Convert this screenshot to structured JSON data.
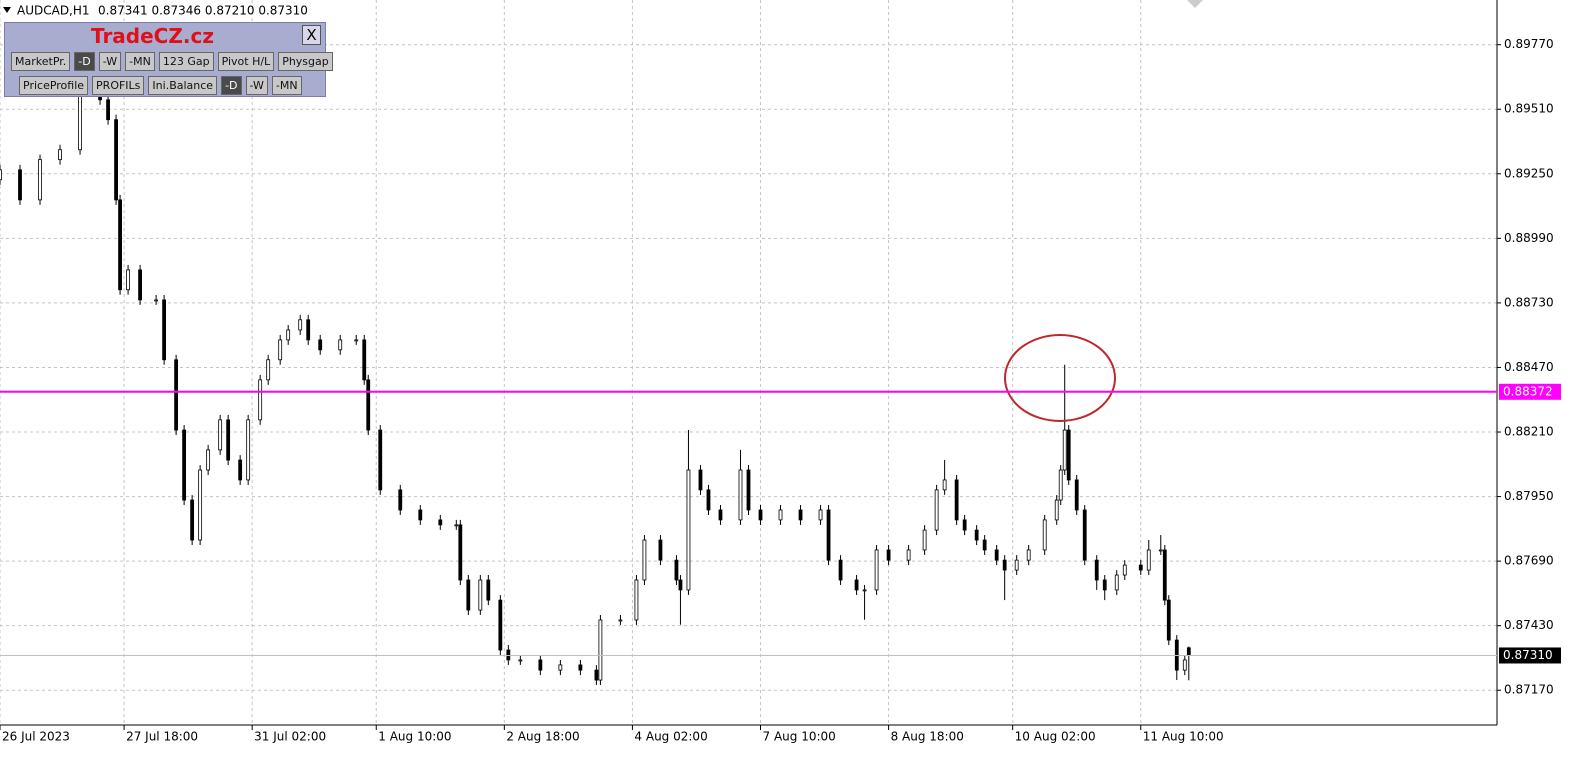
{
  "header": {
    "symbol": "AUDCAD,H1",
    "quote": "0.87341 0.87346 0.87210 0.87310"
  },
  "panel": {
    "title": "TradeCZ.cz",
    "close": "X",
    "buttons": [
      [
        "MarketPr.",
        "-D",
        "-W",
        "-MN",
        "123 Gap",
        "Pivot H/L",
        "Physgap"
      ],
      [
        "PriceProfile",
        "PROFILs",
        "Ini.Balance",
        "-D",
        "-W",
        "-MN"
      ]
    ]
  },
  "chart_data": {
    "type": "candlestick",
    "x": [
      0,
      5,
      10,
      15,
      20,
      25,
      27,
      29,
      30,
      32,
      35,
      39,
      41,
      44,
      46,
      48,
      50,
      52,
      55,
      57,
      60,
      62,
      65,
      67,
      70,
      72,
      75,
      77,
      80,
      85,
      89,
      91,
      92,
      95,
      100,
      105,
      110,
      114,
      115,
      117,
      120,
      122,
      125,
      127,
      130,
      135,
      140,
      145,
      149,
      150,
      155,
      159,
      161,
      165,
      169,
      170,
      172,
      175,
      177,
      180,
      185,
      187,
      190,
      195,
      200,
      205,
      207,
      210,
      214,
      216,
      219,
      222,
      227,
      231,
      234,
      236,
      239,
      241,
      244,
      246,
      249,
      251,
      254,
      257,
      261,
      264,
      265,
      266,
      267,
      269,
      271,
      274,
      276,
      279,
      281,
      285,
      287,
      290,
      291,
      292,
      294,
      296,
      297
    ],
    "open": [
      0.89226,
      0.89266,
      0.89145,
      0.89307,
      0.89347,
      0.89569,
      0.89548,
      0.89468,
      0.89145,
      0.88783,
      0.88863,
      0.88742,
      0.88742,
      0.88501,
      0.88218,
      0.87936,
      0.87775,
      0.88057,
      0.88138,
      0.88259,
      0.88097,
      0.88017,
      0.88259,
      0.8842,
      0.88501,
      0.88581,
      0.88621,
      0.88662,
      0.88581,
      0.88541,
      0.88581,
      0.88581,
      0.8842,
      0.88218,
      0.87977,
      0.87896,
      0.87856,
      0.87836,
      0.87836,
      0.87614,
      0.87493,
      0.87614,
      0.87533,
      0.87332,
      0.87292,
      0.87292,
      0.87251,
      0.87272,
      0.87251,
      0.87211,
      0.87453,
      0.87453,
      0.87614,
      0.87775,
      0.87694,
      0.87614,
      0.87574,
      0.88057,
      0.87977,
      0.87896,
      0.87856,
      0.88057,
      0.87896,
      0.87856,
      0.87896,
      0.87856,
      0.87896,
      0.87694,
      0.87614,
      0.87574,
      0.87574,
      0.87735,
      0.87694,
      0.87735,
      0.87815,
      0.87977,
      0.88017,
      0.87856,
      0.87815,
      0.87775,
      0.87735,
      0.87694,
      0.87654,
      0.87694,
      0.87735,
      0.87856,
      0.87936,
      0.88057,
      0.88218,
      0.88017,
      0.87896,
      0.87694,
      0.87614,
      0.87574,
      0.87634,
      0.87674,
      0.87654,
      0.87735,
      0.87735,
      0.87533,
      0.87372,
      0.87251,
      0.87341
    ],
    "high": [
      0.89286,
      0.89286,
      0.89327,
      0.89367,
      0.89589,
      0.89589,
      0.89568,
      0.89488,
      0.89165,
      0.88883,
      0.88883,
      0.88762,
      0.88762,
      0.88521,
      0.88238,
      0.87956,
      0.88077,
      0.88158,
      0.88279,
      0.88279,
      0.88117,
      0.88279,
      0.8844,
      0.88521,
      0.88601,
      0.88641,
      0.88682,
      0.88682,
      0.88601,
      0.88601,
      0.88601,
      0.88601,
      0.8844,
      0.88238,
      0.87997,
      0.87916,
      0.87876,
      0.87856,
      0.87856,
      0.87634,
      0.87634,
      0.87634,
      0.87553,
      0.87352,
      0.87312,
      0.87312,
      0.87292,
      0.87292,
      0.87271,
      0.87473,
      0.87473,
      0.87634,
      0.87795,
      0.87795,
      0.87714,
      0.87634,
      0.88218,
      0.88077,
      0.87997,
      0.87916,
      0.88138,
      0.88077,
      0.87916,
      0.87916,
      0.87916,
      0.87916,
      0.87916,
      0.87714,
      0.87634,
      0.87594,
      0.87755,
      0.87755,
      0.87755,
      0.87835,
      0.87997,
      0.88097,
      0.88037,
      0.87876,
      0.87835,
      0.87795,
      0.87755,
      0.87714,
      0.87714,
      0.87755,
      0.87876,
      0.87956,
      0.88077,
      0.88481,
      0.88238,
      0.88037,
      0.87916,
      0.87714,
      0.87634,
      0.87654,
      0.87694,
      0.87694,
      0.87775,
      0.87795,
      0.87755,
      0.87553,
      0.87392,
      0.87312,
      0.87346
    ],
    "low": [
      0.89206,
      0.89125,
      0.89125,
      0.89287,
      0.89327,
      0.89528,
      0.89448,
      0.89125,
      0.88763,
      0.88763,
      0.88722,
      0.88722,
      0.88481,
      0.88198,
      0.87916,
      0.87755,
      0.87755,
      0.88037,
      0.88118,
      0.88077,
      0.87997,
      0.87997,
      0.88239,
      0.884,
      0.88481,
      0.88561,
      0.88601,
      0.88561,
      0.88521,
      0.88521,
      0.88561,
      0.884,
      0.88198,
      0.87957,
      0.87876,
      0.87836,
      0.87816,
      0.87816,
      0.87594,
      0.87473,
      0.87473,
      0.87513,
      0.87312,
      0.87272,
      0.87272,
      0.87231,
      0.87231,
      0.87231,
      0.87191,
      0.87191,
      0.87433,
      0.87433,
      0.87594,
      0.87674,
      0.87594,
      0.87434,
      0.87554,
      0.87957,
      0.87876,
      0.87836,
      0.87836,
      0.87876,
      0.87836,
      0.87836,
      0.87836,
      0.87836,
      0.87674,
      0.87594,
      0.87554,
      0.87454,
      0.87554,
      0.87674,
      0.87674,
      0.87715,
      0.87795,
      0.87957,
      0.87836,
      0.87795,
      0.87755,
      0.87715,
      0.87674,
      0.87533,
      0.87634,
      0.87674,
      0.87715,
      0.87836,
      0.87916,
      0.88037,
      0.87997,
      0.87876,
      0.87674,
      0.87574,
      0.87533,
      0.87554,
      0.87614,
      0.87634,
      0.87634,
      0.87715,
      0.87513,
      0.87352,
      0.87211,
      0.87231,
      0.8721
    ],
    "close": [
      0.89266,
      0.89145,
      0.89307,
      0.89347,
      0.89569,
      0.89548,
      0.89468,
      0.89145,
      0.88783,
      0.88863,
      0.88742,
      0.88742,
      0.88501,
      0.88218,
      0.87936,
      0.87775,
      0.88057,
      0.88138,
      0.88259,
      0.88097,
      0.88017,
      0.88259,
      0.8842,
      0.88501,
      0.88581,
      0.88621,
      0.88662,
      0.88581,
      0.88541,
      0.88581,
      0.88581,
      0.8842,
      0.88218,
      0.87977,
      0.87896,
      0.87856,
      0.87836,
      0.87836,
      0.87614,
      0.87493,
      0.87614,
      0.87533,
      0.87332,
      0.87292,
      0.87292,
      0.87251,
      0.87272,
      0.87251,
      0.87211,
      0.87453,
      0.87453,
      0.87614,
      0.87775,
      0.87694,
      0.87614,
      0.87574,
      0.88057,
      0.87977,
      0.87896,
      0.87856,
      0.88057,
      0.87896,
      0.87856,
      0.87896,
      0.87856,
      0.87896,
      0.87694,
      0.87614,
      0.87574,
      0.87574,
      0.87735,
      0.87694,
      0.87735,
      0.87815,
      0.87977,
      0.88017,
      0.87856,
      0.87815,
      0.87775,
      0.87735,
      0.87694,
      0.87654,
      0.87694,
      0.87735,
      0.87856,
      0.87936,
      0.88057,
      0.88218,
      0.88017,
      0.87896,
      0.87694,
      0.87614,
      0.87574,
      0.87634,
      0.87674,
      0.87654,
      0.87735,
      0.87735,
      0.87533,
      0.87372,
      0.87251,
      0.87292,
      0.8731
    ],
    "up_color": "#ffffff",
    "down_color": "#000000",
    "line_color": "#000000",
    "xlim": [
      0,
      374
    ],
    "xticks": [
      {
        "value": 0,
        "label": "26 Jul 2023"
      },
      {
        "value": 31,
        "label": "27 Jul 18:00"
      },
      {
        "value": 63,
        "label": "31 Jul 02:00"
      },
      {
        "value": 94,
        "label": "1 Aug 10:00"
      },
      {
        "value": 126,
        "label": "2 Aug 18:00"
      },
      {
        "value": 158,
        "label": "4 Aug 02:00"
      },
      {
        "value": 190,
        "label": "7 Aug 10:00"
      },
      {
        "value": 222,
        "label": "8 Aug 18:00"
      },
      {
        "value": 253,
        "label": "10 Aug 02:00"
      },
      {
        "value": 285,
        "label": "11 Aug 10:00"
      }
    ],
    "ylim": [
      0.8703,
      0.8995
    ],
    "yticks": [
      {
        "value": 0.8977,
        "label": "0.89770"
      },
      {
        "value": 0.8951,
        "label": "0.89510"
      },
      {
        "value": 0.8925,
        "label": "0.89250"
      },
      {
        "value": 0.8899,
        "label": "0.88990"
      },
      {
        "value": 0.8873,
        "label": "0.88730"
      },
      {
        "value": 0.8847,
        "label": "0.88470"
      },
      {
        "value": 0.8821,
        "label": "0.88210"
      },
      {
        "value": 0.8795,
        "label": "0.87950"
      },
      {
        "value": 0.8769,
        "label": "0.87690"
      },
      {
        "value": 0.8743,
        "label": "0.87430"
      },
      {
        "value": 0.8717,
        "label": "0.87170"
      }
    ],
    "grid": true,
    "hline": {
      "value": 0.88372,
      "color": "#ff00ff"
    },
    "last_price": {
      "value": 0.8731,
      "label": "0.87310",
      "color": "#c0c0c0"
    }
  }
}
